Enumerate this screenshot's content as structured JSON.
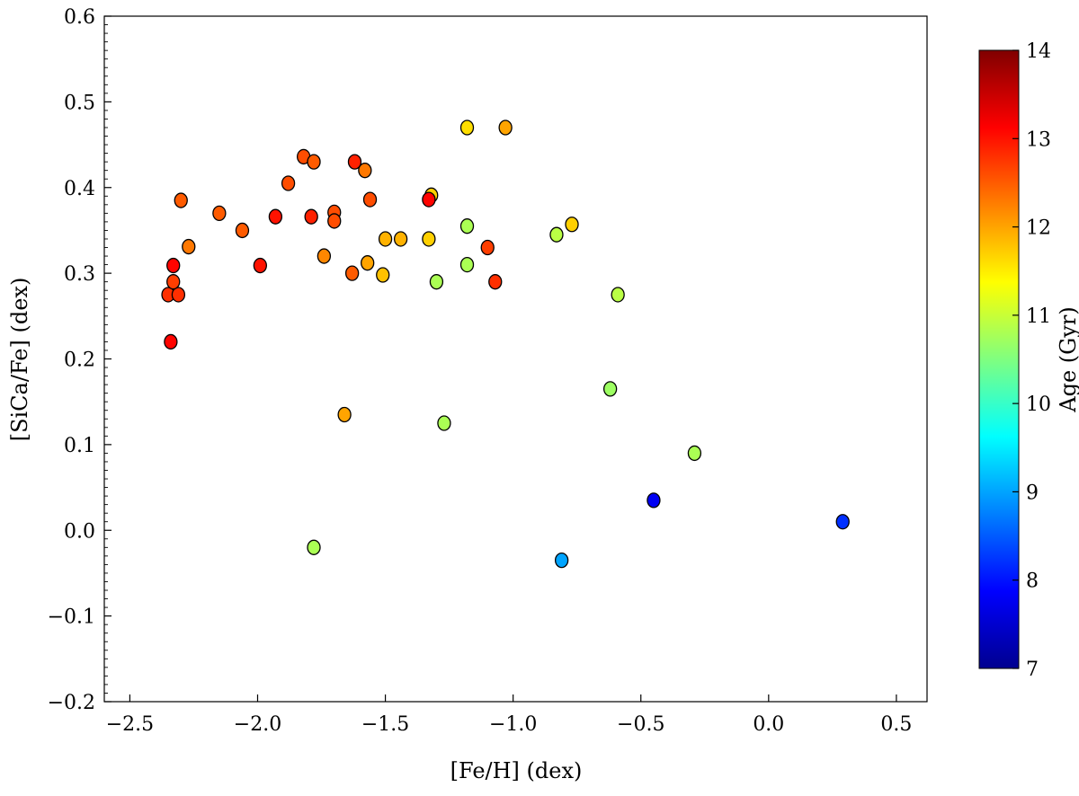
{
  "chart_data": {
    "type": "scatter",
    "xlabel": "[Fe/H] (dex)",
    "ylabel": "[SiCa/Fe] (dex)",
    "xlim": [
      -2.6,
      0.62
    ],
    "ylim": [
      -0.2,
      0.6
    ],
    "x_ticks": [
      -2.5,
      -2.0,
      -1.5,
      -1.0,
      -0.5,
      0.0,
      0.5
    ],
    "x_tick_labels": [
      "−2.5",
      "−2.0",
      "−1.5",
      "−1.0",
      "−0.5",
      "0.0",
      "0.5"
    ],
    "y_ticks": [
      -0.2,
      -0.1,
      0.0,
      0.1,
      0.2,
      0.3,
      0.4,
      0.5,
      0.6
    ],
    "y_tick_labels": [
      "−0.2",
      "−0.1",
      "0.0",
      "0.1",
      "0.2",
      "0.3",
      "0.4",
      "0.5",
      "0.6"
    ],
    "grid": false,
    "colorbar": {
      "label": "Age (Gyr)",
      "colormap": "jet",
      "range": [
        7,
        14
      ],
      "ticks": [
        7,
        8,
        9,
        10,
        11,
        12,
        13,
        14
      ],
      "tick_labels": [
        "7",
        "8",
        "9",
        "10",
        "11",
        "12",
        "13",
        "14"
      ]
    },
    "points": [
      {
        "x": -2.35,
        "y": 0.275,
        "age": 12.8
      },
      {
        "x": -2.31,
        "y": 0.275,
        "age": 12.8
      },
      {
        "x": -2.33,
        "y": 0.29,
        "age": 12.7
      },
      {
        "x": -2.33,
        "y": 0.309,
        "age": 13.1
      },
      {
        "x": -2.34,
        "y": 0.22,
        "age": 13.1
      },
      {
        "x": -2.3,
        "y": 0.385,
        "age": 12.5
      },
      {
        "x": -2.27,
        "y": 0.331,
        "age": 12.3
      },
      {
        "x": -2.15,
        "y": 0.37,
        "age": 12.5
      },
      {
        "x": -2.06,
        "y": 0.35,
        "age": 12.5
      },
      {
        "x": -1.99,
        "y": 0.309,
        "age": 13.0
      },
      {
        "x": -1.93,
        "y": 0.366,
        "age": 13.0
      },
      {
        "x": -1.88,
        "y": 0.405,
        "age": 12.6
      },
      {
        "x": -1.82,
        "y": 0.436,
        "age": 12.6
      },
      {
        "x": -1.78,
        "y": 0.43,
        "age": 12.5
      },
      {
        "x": -1.79,
        "y": 0.366,
        "age": 12.9
      },
      {
        "x": -1.7,
        "y": 0.371,
        "age": 12.6
      },
      {
        "x": -1.7,
        "y": 0.361,
        "age": 12.6
      },
      {
        "x": -1.74,
        "y": 0.32,
        "age": 12.2
      },
      {
        "x": -1.66,
        "y": 0.135,
        "age": 12.0
      },
      {
        "x": -1.62,
        "y": 0.43,
        "age": 12.9
      },
      {
        "x": -1.58,
        "y": 0.42,
        "age": 12.3
      },
      {
        "x": -1.56,
        "y": 0.386,
        "age": 12.6
      },
      {
        "x": -1.63,
        "y": 0.3,
        "age": 12.5
      },
      {
        "x": -1.57,
        "y": 0.312,
        "age": 12.0
      },
      {
        "x": -1.51,
        "y": 0.298,
        "age": 11.8
      },
      {
        "x": -1.5,
        "y": 0.34,
        "age": 11.9
      },
      {
        "x": -1.44,
        "y": 0.34,
        "age": 11.9
      },
      {
        "x": -1.32,
        "y": 0.391,
        "age": 11.7
      },
      {
        "x": -1.33,
        "y": 0.386,
        "age": 13.1
      },
      {
        "x": -1.33,
        "y": 0.34,
        "age": 11.7
      },
      {
        "x": -1.3,
        "y": 0.29,
        "age": 10.8
      },
      {
        "x": -1.27,
        "y": 0.125,
        "age": 10.8
      },
      {
        "x": -1.18,
        "y": 0.47,
        "age": 11.6
      },
      {
        "x": -1.18,
        "y": 0.355,
        "age": 10.8
      },
      {
        "x": -1.18,
        "y": 0.31,
        "age": 10.8
      },
      {
        "x": -1.1,
        "y": 0.33,
        "age": 12.7
      },
      {
        "x": -1.07,
        "y": 0.29,
        "age": 12.8
      },
      {
        "x": -1.03,
        "y": 0.47,
        "age": 12.0
      },
      {
        "x": -1.78,
        "y": -0.02,
        "age": 10.8
      },
      {
        "x": -0.83,
        "y": 0.345,
        "age": 10.9
      },
      {
        "x": -0.77,
        "y": 0.357,
        "age": 11.7
      },
      {
        "x": -0.59,
        "y": 0.275,
        "age": 10.9
      },
      {
        "x": -0.62,
        "y": 0.165,
        "age": 10.7
      },
      {
        "x": -0.81,
        "y": -0.035,
        "age": 9.0
      },
      {
        "x": -0.45,
        "y": 0.035,
        "age": 7.8
      },
      {
        "x": -0.29,
        "y": 0.09,
        "age": 10.8
      },
      {
        "x": 0.29,
        "y": 0.01,
        "age": 8.2
      }
    ]
  }
}
